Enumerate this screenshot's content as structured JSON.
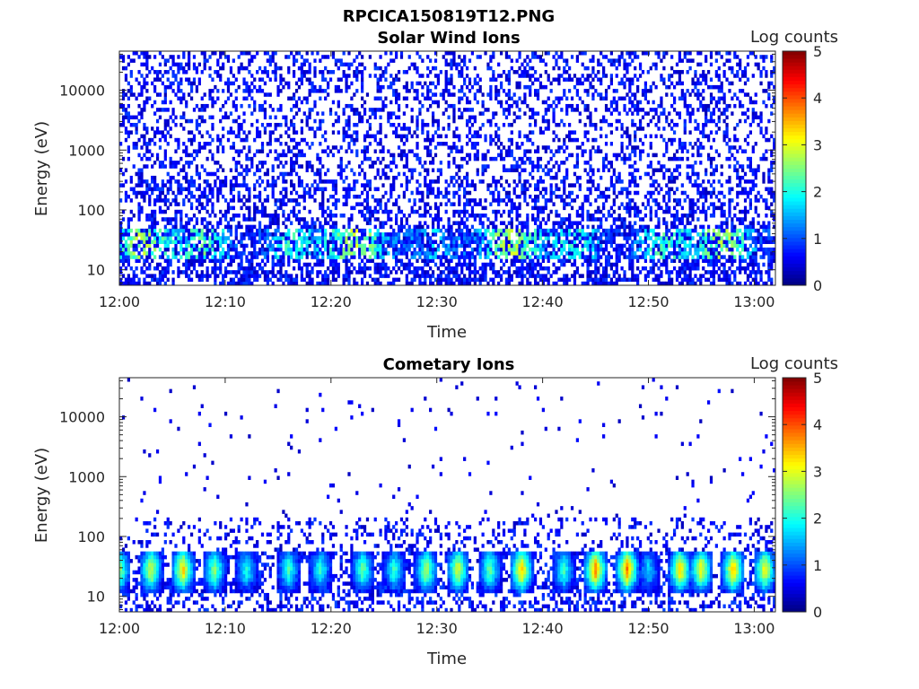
{
  "figure_title": "RPCICA150819T12.PNG",
  "chart_data": [
    {
      "type": "heatmap",
      "title": "Solar Wind Ions",
      "xlabel": "Time",
      "ylabel": "Energy (eV)",
      "xlim": [
        "12:00",
        "13:02"
      ],
      "ylim": [
        5.5,
        45000
      ],
      "yscale": "log",
      "x_ticks": [
        "12:00",
        "12:10",
        "12:20",
        "12:30",
        "12:40",
        "12:50",
        "13:00"
      ],
      "y_ticks": [
        "10",
        "100",
        "1000",
        "10000"
      ],
      "colorbar": {
        "label": "Log counts",
        "range": [
          0,
          5
        ],
        "ticks": [
          "0",
          "1",
          "2",
          "3",
          "4",
          "5"
        ],
        "colormap": "jet"
      },
      "grid": false,
      "description_level": "sparse low-count (≈0.3–1) noise across all energies; enhanced counts 2–3 log near 20–40 eV"
    },
    {
      "type": "heatmap",
      "title": "Cometary Ions",
      "xlabel": "Time",
      "ylabel": "Energy (eV)",
      "xlim": [
        "12:00",
        "13:02"
      ],
      "ylim": [
        5.5,
        45000
      ],
      "yscale": "log",
      "x_ticks": [
        "12:00",
        "12:10",
        "12:20",
        "12:30",
        "12:40",
        "12:50",
        "13:00"
      ],
      "y_ticks": [
        "10",
        "100",
        "1000",
        "10000"
      ],
      "colorbar": {
        "label": "Log counts",
        "range": [
          0,
          5
        ],
        "ticks": [
          "0",
          "1",
          "2",
          "3",
          "4",
          "5"
        ],
        "colormap": "jet"
      },
      "grid": false,
      "bursts": [
        {
          "t": "12:00",
          "level": 2.5
        },
        {
          "t": "12:03",
          "level": 2.8
        },
        {
          "t": "12:06",
          "level": 3.2
        },
        {
          "t": "12:09",
          "level": 2.4
        },
        {
          "t": "12:12",
          "level": 1.8
        },
        {
          "t": "12:16",
          "level": 2.0
        },
        {
          "t": "12:19",
          "level": 1.9
        },
        {
          "t": "12:23",
          "level": 2.2
        },
        {
          "t": "12:26",
          "level": 2.0
        },
        {
          "t": "12:29",
          "level": 2.6
        },
        {
          "t": "12:32",
          "level": 2.8
        },
        {
          "t": "12:35",
          "level": 2.2
        },
        {
          "t": "12:38",
          "level": 3.3
        },
        {
          "t": "12:42",
          "level": 2.0
        },
        {
          "t": "12:45",
          "level": 3.6
        },
        {
          "t": "12:48",
          "level": 3.6
        },
        {
          "t": "12:50",
          "level": 1.5
        },
        {
          "t": "12:53",
          "level": 3.2
        },
        {
          "t": "12:55",
          "level": 3.0
        },
        {
          "t": "12:58",
          "level": 3.3
        },
        {
          "t": "13:01",
          "level": 3.0
        }
      ]
    }
  ]
}
